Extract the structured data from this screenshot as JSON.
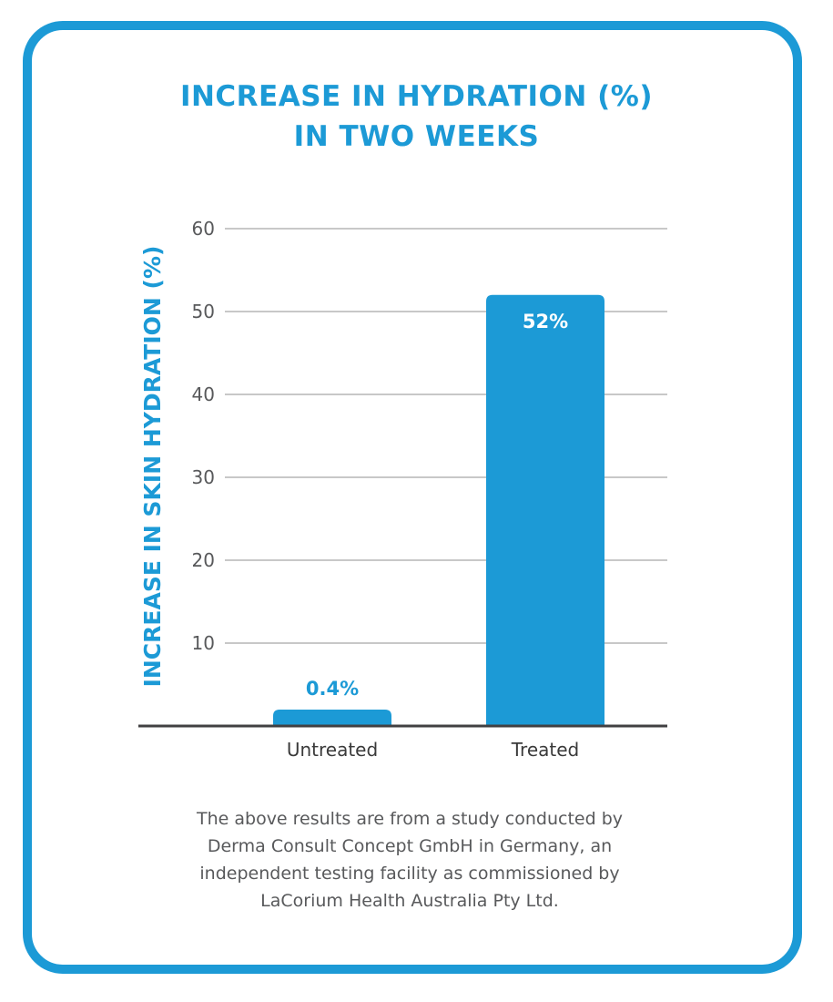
{
  "title": {
    "line1": "INCREASE IN HYDRATION (%)",
    "line2": "IN TWO WEEKS"
  },
  "note": {
    "line1": "The above results are from a study conducted by",
    "line2": "Derma Consult Concept GmbH in Germany, an",
    "line3": "independent testing facility as commissioned by",
    "line4": "LaCorium Health Australia Pty Ltd."
  },
  "colors": {
    "accent": "#1c9ad6",
    "grid": "#b5b5b5",
    "axis": "#414042",
    "text": "#58595b"
  },
  "chart_data": {
    "type": "bar",
    "title": "INCREASE IN HYDRATION (%) IN TWO WEEKS",
    "xlabel": "",
    "ylabel": "INCREASE IN SKIN HYDRATION (%)",
    "ylim": [
      0,
      60
    ],
    "yticks": [
      10,
      20,
      30,
      40,
      50,
      60
    ],
    "grid": true,
    "categories": [
      "Untreated",
      "Treated"
    ],
    "values": [
      0.4,
      52
    ],
    "data_labels": [
      "0.4%",
      "52%"
    ]
  }
}
